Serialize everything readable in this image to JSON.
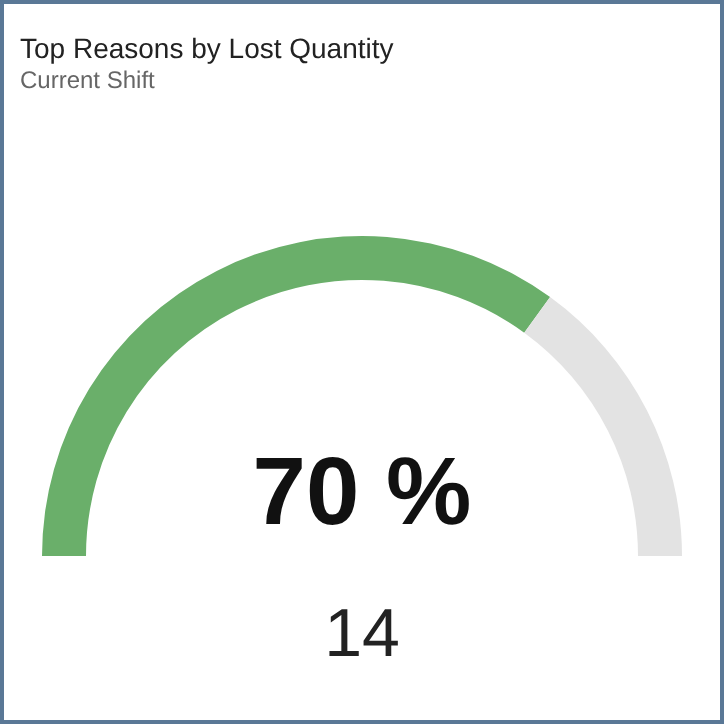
{
  "chart_data": {
    "type": "donut",
    "title": "Top Reasons by Lost Quantity",
    "subtitle": "Current Shift",
    "categories": [
      null,
      null
    ],
    "values": [
      70,
      30
    ],
    "colors": [
      "#6aaf6a",
      "#e3e3e3"
    ],
    "value_labels": [
      "70 %",
      null
    ],
    "annotations": [
      "14"
    ]
  }
}
